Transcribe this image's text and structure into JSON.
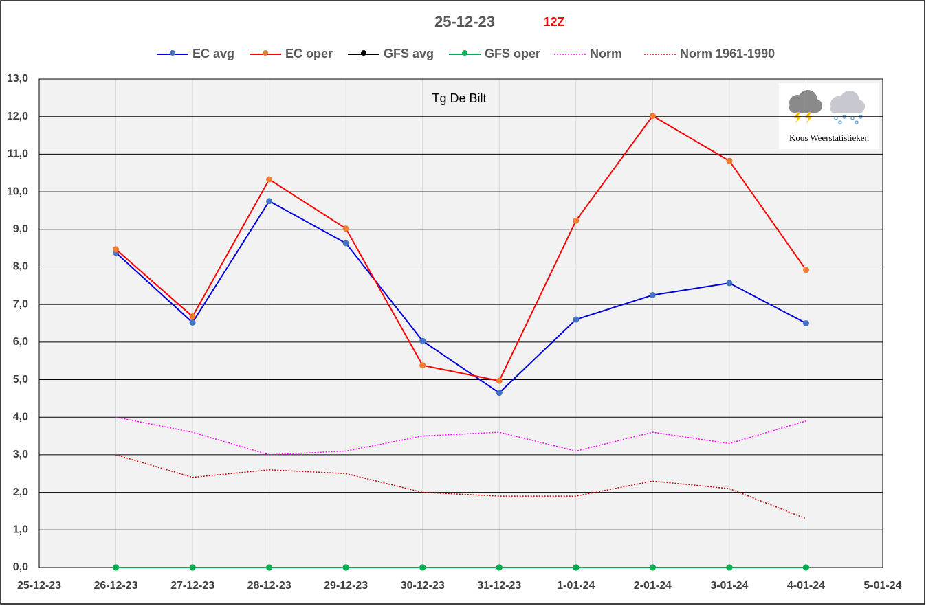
{
  "chart_data": {
    "type": "line",
    "title": "25-12-23",
    "subtitle": "12Z",
    "annotation": "Tg De Bilt",
    "logo_text": "Koos Weerstatistieken",
    "categories": [
      "25-12-23",
      "26-12-23",
      "27-12-23",
      "28-12-23",
      "29-12-23",
      "30-12-23",
      "31-12-23",
      "1-01-24",
      "2-01-24",
      "3-01-24",
      "4-01-24",
      "5-01-24"
    ],
    "series": [
      {
        "name": "EC avg",
        "color": "#0000e0",
        "marker_color": "#4472c4",
        "marker": true,
        "dash": "solid",
        "values": [
          null,
          8.38,
          6.52,
          9.75,
          8.63,
          6.03,
          4.65,
          6.6,
          7.25,
          7.57,
          6.5,
          null
        ]
      },
      {
        "name": "EC oper",
        "color": "#ff0000",
        "marker_color": "#ed7d31",
        "marker": true,
        "dash": "solid",
        "values": [
          null,
          8.47,
          6.68,
          10.33,
          9.02,
          5.38,
          4.97,
          9.23,
          12.02,
          10.82,
          7.92,
          null
        ]
      },
      {
        "name": "GFS avg",
        "color": "#000000",
        "marker_color": "#000000",
        "marker": true,
        "dash": "solid",
        "values": [
          null,
          0,
          0,
          0,
          0,
          0,
          0,
          0,
          0,
          0,
          0,
          null
        ]
      },
      {
        "name": "GFS oper",
        "color": "#00b050",
        "marker_color": "#00b050",
        "marker": true,
        "dash": "solid",
        "values": [
          null,
          0,
          0,
          0,
          0,
          0,
          0,
          0,
          0,
          0,
          0,
          null
        ]
      },
      {
        "name": "Norm",
        "color": "#ff00ff",
        "marker_color": "#ff00ff",
        "marker": false,
        "dash": "dotted",
        "values": [
          null,
          4.0,
          3.6,
          3.0,
          3.1,
          3.5,
          3.6,
          3.1,
          3.6,
          3.3,
          3.9,
          null
        ]
      },
      {
        "name": "Norm 1961-1990",
        "color": "#c00000",
        "marker_color": "#c00000",
        "marker": false,
        "dash": "dotted",
        "values": [
          null,
          3.0,
          2.4,
          2.6,
          2.5,
          2.0,
          1.9,
          1.9,
          2.3,
          2.1,
          1.3,
          null
        ]
      }
    ],
    "ylim": [
      0,
      13
    ],
    "yticks": [
      {
        "value": 0,
        "label": "0,0"
      },
      {
        "value": 1,
        "label": "1,0"
      },
      {
        "value": 2,
        "label": "2,0"
      },
      {
        "value": 3,
        "label": "3,0"
      },
      {
        "value": 4,
        "label": "4,0"
      },
      {
        "value": 5,
        "label": "5,0"
      },
      {
        "value": 6,
        "label": "6,0"
      },
      {
        "value": 7,
        "label": "7,0"
      },
      {
        "value": 8,
        "label": "8,0"
      },
      {
        "value": 9,
        "label": "9,0"
      },
      {
        "value": 10,
        "label": "10,0"
      },
      {
        "value": 11,
        "label": "11,0"
      },
      {
        "value": 12,
        "label": "12,0"
      },
      {
        "value": 13,
        "label": "13,0"
      }
    ],
    "grid": true,
    "legend": "top"
  }
}
